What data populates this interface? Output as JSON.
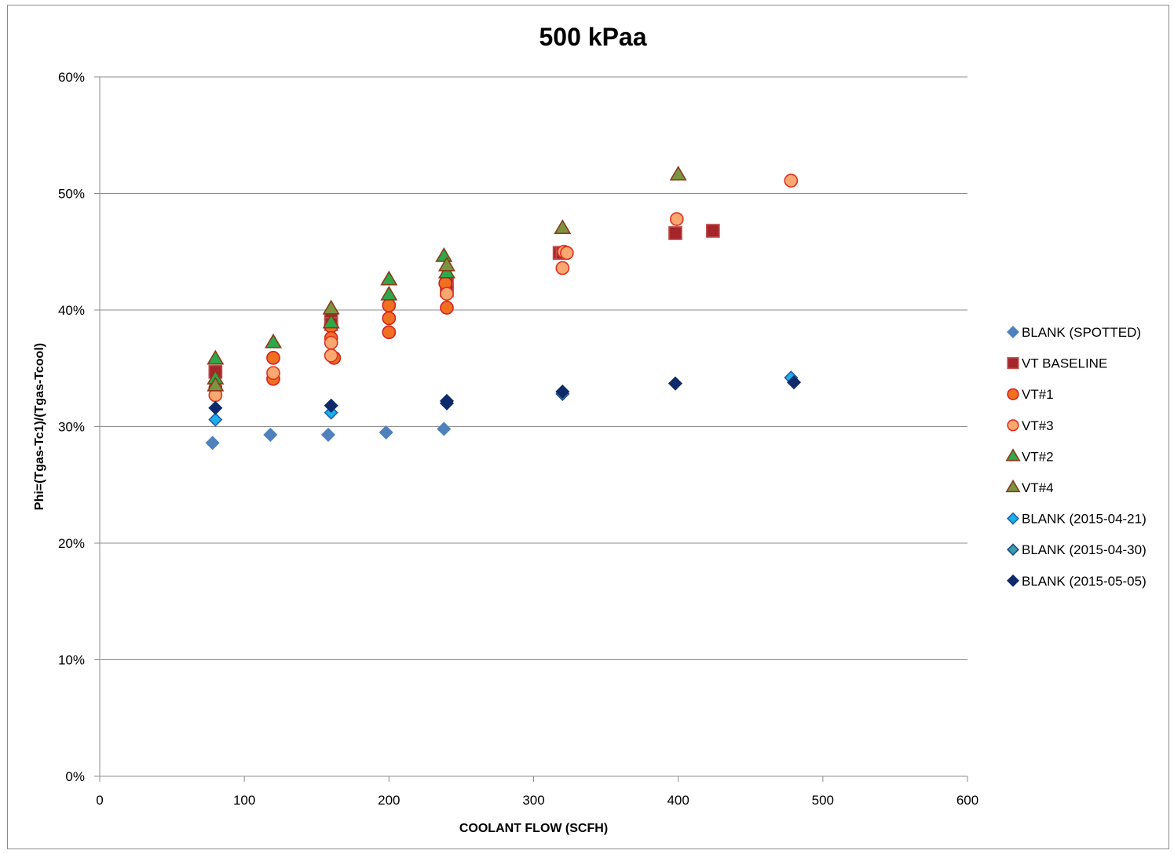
{
  "chart_data": {
    "type": "scatter",
    "title": "500 kPaa",
    "xlabel": "COOLANT FLOW (SCFH)",
    "ylabel": "Phi=(Tgas-Tc1)/(Tgas-Tcool)",
    "xlim": [
      0,
      600
    ],
    "ylim": [
      0,
      0.6
    ],
    "xticks": [
      0,
      100,
      200,
      300,
      400,
      500,
      600
    ],
    "xtick_labels": [
      "0",
      "100",
      "200",
      "300",
      "400",
      "500",
      "600"
    ],
    "yticks": [
      0,
      0.1,
      0.2,
      0.3,
      0.4,
      0.5,
      0.6
    ],
    "ytick_labels": [
      "0%",
      "10%",
      "20%",
      "30%",
      "40%",
      "50%",
      "60%"
    ],
    "grid": "horizontal",
    "legend_position": "right",
    "series": [
      {
        "name": "BLANK (SPOTTED)",
        "marker": "diamond",
        "color": "#4f81bd",
        "stroke": "#4f81bd",
        "points": [
          [
            78,
            0.286
          ],
          [
            118,
            0.293
          ],
          [
            158,
            0.293
          ],
          [
            198,
            0.295
          ],
          [
            238,
            0.298
          ]
        ]
      },
      {
        "name": "VT BASELINE",
        "marker": "square",
        "color": "#a5262a",
        "stroke": "#c0504d",
        "points": [
          [
            80,
            0.347
          ],
          [
            160,
            0.392
          ],
          [
            160,
            0.388
          ],
          [
            240,
            0.422
          ],
          [
            240,
            0.417
          ],
          [
            318,
            0.449
          ],
          [
            320,
            0.449
          ],
          [
            398,
            0.466
          ],
          [
            424,
            0.468
          ]
        ]
      },
      {
        "name": "VT#1",
        "marker": "circle",
        "color": "#f07020",
        "stroke": "#d42020",
        "points": [
          [
            80,
            0.333
          ],
          [
            120,
            0.359
          ],
          [
            120,
            0.341
          ],
          [
            160,
            0.386
          ],
          [
            160,
            0.376
          ],
          [
            162,
            0.359
          ],
          [
            200,
            0.404
          ],
          [
            200,
            0.393
          ],
          [
            200,
            0.381
          ],
          [
            239,
            0.423
          ],
          [
            240,
            0.402
          ]
        ]
      },
      {
        "name": "VT#3",
        "marker": "circle",
        "color": "#f9a870",
        "stroke": "#e03020",
        "points": [
          [
            80,
            0.327
          ],
          [
            120,
            0.346
          ],
          [
            160,
            0.372
          ],
          [
            160,
            0.361
          ],
          [
            240,
            0.414
          ],
          [
            320,
            0.436
          ],
          [
            321,
            0.45
          ],
          [
            323,
            0.449
          ],
          [
            399,
            0.478
          ],
          [
            478,
            0.511
          ]
        ]
      },
      {
        "name": "VT#2",
        "marker": "triangle",
        "color": "#2ea84a",
        "stroke": "#8a3a1a",
        "points": [
          [
            80,
            0.358
          ],
          [
            80,
            0.341
          ],
          [
            120,
            0.372
          ],
          [
            160,
            0.389
          ],
          [
            200,
            0.426
          ],
          [
            200,
            0.413
          ],
          [
            238,
            0.446
          ],
          [
            240,
            0.432
          ]
        ]
      },
      {
        "name": "VT#4",
        "marker": "triangle",
        "color": "#7a9440",
        "stroke": "#8a3a1a",
        "points": [
          [
            80,
            0.335
          ],
          [
            160,
            0.401
          ],
          [
            240,
            0.438
          ],
          [
            320,
            0.47
          ],
          [
            400,
            0.516
          ]
        ]
      },
      {
        "name": "BLANK (2015-04-21)",
        "marker": "diamond",
        "color": "#1ab0ec",
        "stroke": "#1f5fa8",
        "points": [
          [
            80,
            0.306
          ],
          [
            160,
            0.312
          ],
          [
            478,
            0.342
          ]
        ]
      },
      {
        "name": "BLANK (2015-04-30)",
        "marker": "diamond",
        "color": "#3a9ab0",
        "stroke": "#1f4f78",
        "points": [
          [
            320,
            0.328
          ]
        ]
      },
      {
        "name": "BLANK (2015-05-05)",
        "marker": "diamond",
        "color": "#0e2a6a",
        "stroke": "#0e2a6a",
        "points": [
          [
            80,
            0.316
          ],
          [
            160,
            0.318
          ],
          [
            240,
            0.32
          ],
          [
            240,
            0.322
          ],
          [
            320,
            0.33
          ],
          [
            398,
            0.337
          ],
          [
            480,
            0.338
          ]
        ]
      }
    ]
  }
}
